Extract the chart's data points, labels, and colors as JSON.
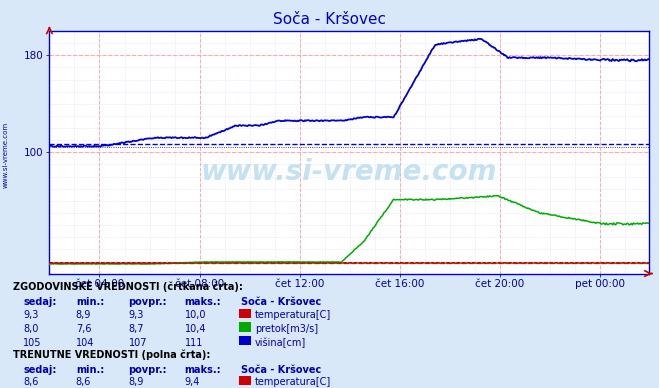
{
  "title": "Soča - Kršovec",
  "title_color": "#0000cc",
  "bg_color": "#d8e8f8",
  "plot_bg_color": "#ffffff",
  "grid_color_major": "#ffaaaa",
  "grid_color_minor": "#ccccff",
  "x_tick_labels": [
    "čet 04:00",
    "čet 08:00",
    "čet 12:00",
    "čet 16:00",
    "čet 20:00",
    "pet 00:00"
  ],
  "x_tick_positions": [
    48,
    144,
    240,
    336,
    432,
    528
  ],
  "n_points": 576,
  "ymin": 0,
  "ymax": 200,
  "y_ticks": [
    100,
    180
  ],
  "ylabel_color": "#0000aa",
  "watermark": "www.si-vreme.com",
  "hist_visina_avg": 107,
  "hist_visina_max": 111,
  "hist_visina_min": 104,
  "hist_pretok_avg": 8.7,
  "hist_pretok_max": 10.4,
  "hist_pretok_min": 7.6,
  "hist_temp_avg": 9.3,
  "color_temp": "#cc0000",
  "color_pretok": "#00aa00",
  "color_visina": "#0000cc",
  "table_text_color": "#0000aa",
  "table_header_color": "#000000",
  "sidebar_text": "www.si-vreme.com",
  "sidebar_color": "#0000aa"
}
